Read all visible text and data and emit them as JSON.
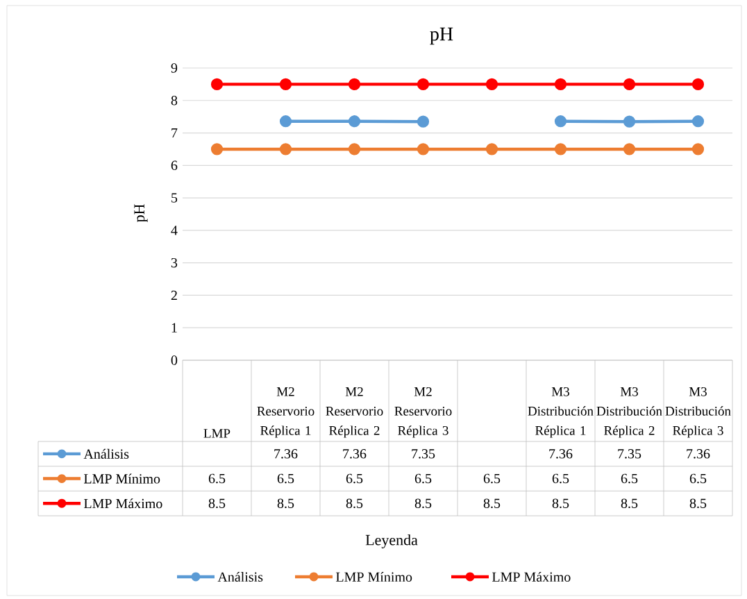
{
  "chart_data": {
    "type": "line",
    "title": "pH",
    "annotations": [
      "Leyenda"
    ],
    "ylabel": "pH",
    "categories": [
      "LMP",
      "M2 Reservorio Réplica 1",
      "M2 Reservorio Réplica 2",
      "M2 Reservorio Réplica 3",
      null,
      "M3 Distribución Réplica 1",
      "M3 Distribución Réplica 2",
      "M3 Distribución Réplica 3"
    ],
    "series": [
      {
        "name": "Análisis",
        "color": "#5b9bd5",
        "values": [
          null,
          7.36,
          7.36,
          7.35,
          null,
          7.36,
          7.35,
          7.36
        ]
      },
      {
        "name": "LMP Mínimo",
        "color": "#ed7d31",
        "values": [
          6.5,
          6.5,
          6.5,
          6.5,
          6.5,
          6.5,
          6.5,
          6.5
        ]
      },
      {
        "name": "LMP Máximo",
        "color": "#ff0000",
        "values": [
          8.5,
          8.5,
          8.5,
          8.5,
          8.5,
          8.5,
          8.5,
          8.5
        ]
      }
    ],
    "ylim": [
      0,
      9
    ],
    "yticks": [
      0,
      1,
      2,
      3,
      4,
      5,
      6,
      7,
      8,
      9
    ],
    "grid": "y",
    "legend": "bottom",
    "marker": "circle",
    "line_style": "solid",
    "data_labels": true
  }
}
